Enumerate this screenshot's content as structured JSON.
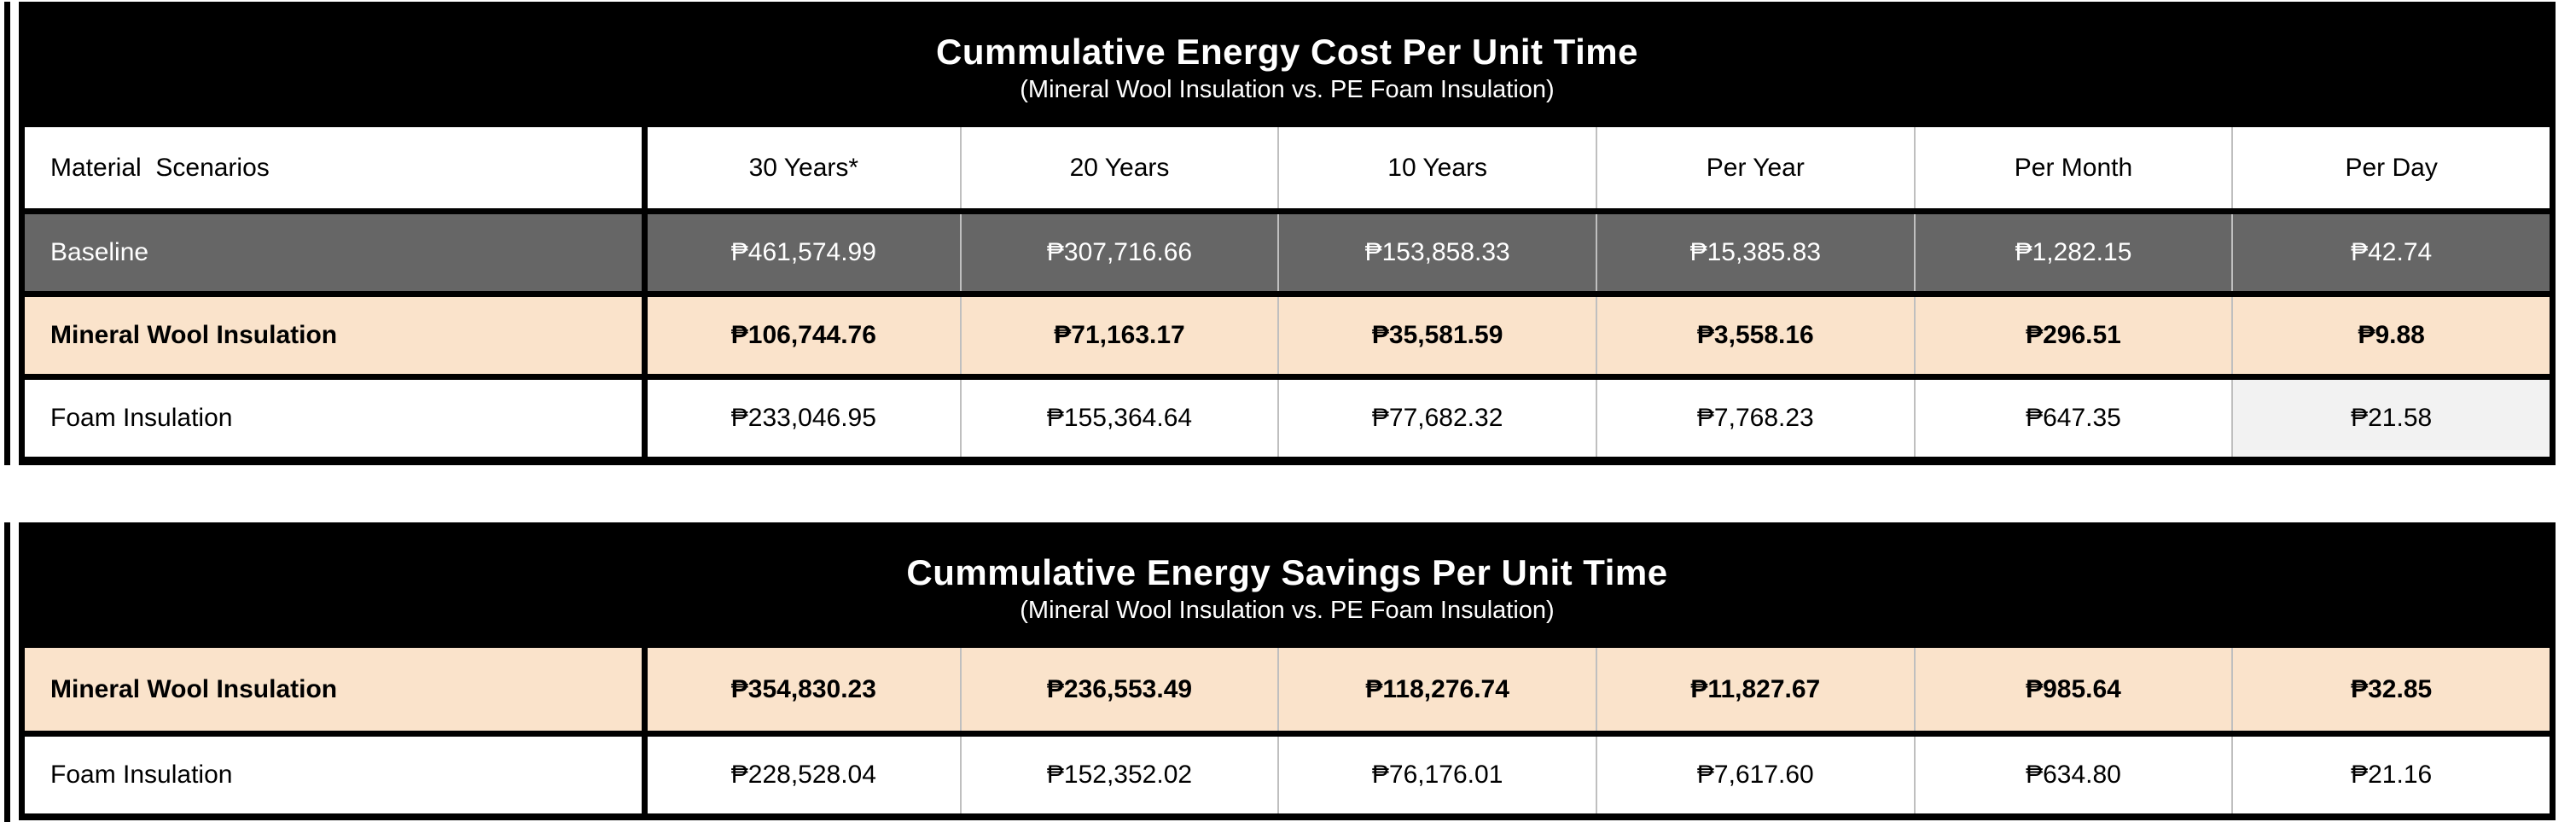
{
  "colors": {
    "band_bg": "#000000",
    "row_gray_bg": "#666666",
    "row_gray_text": "#ffffff",
    "row_peach_bg": "#fae3cb",
    "highlight_cell_bg": "#f2f2f2",
    "divider": "#bfbfbf"
  },
  "table_cost": {
    "title": "Cummulative Energy Cost Per Unit Time",
    "subtitle": "(Mineral Wool Insulation vs. PE Foam Insulation)",
    "header": {
      "material": "Material  Scenarios",
      "cols": [
        "30 Years*",
        "20 Years",
        "10 Years",
        "Per Year",
        "Per Month",
        "Per Day"
      ]
    },
    "rows": [
      {
        "label": "Baseline",
        "values": [
          "₱461,574.99",
          "₱307,716.66",
          "₱153,858.33",
          "₱15,385.83",
          "₱1,282.15",
          "₱42.74"
        ]
      },
      {
        "label": "Mineral Wool Insulation",
        "values": [
          "₱106,744.76",
          "₱71,163.17",
          "₱35,581.59",
          "₱3,558.16",
          "₱296.51",
          "₱9.88"
        ]
      },
      {
        "label": "Foam Insulation",
        "values": [
          "₱233,046.95",
          "₱155,364.64",
          "₱77,682.32",
          "₱7,768.23",
          "₱647.35",
          "₱21.58"
        ]
      }
    ]
  },
  "table_savings": {
    "title": "Cummulative Energy Savings Per Unit Time",
    "subtitle": "(Mineral Wool Insulation vs. PE Foam Insulation)",
    "rows": [
      {
        "label": "Mineral Wool Insulation",
        "values": [
          "₱354,830.23",
          "₱236,553.49",
          "₱118,276.74",
          "₱11,827.67",
          "₱985.64",
          "₱32.85"
        ]
      },
      {
        "label": "Foam Insulation",
        "values": [
          "₱228,528.04",
          "₱152,352.02",
          "₱76,176.01",
          "₱7,617.60",
          "₱634.80",
          "₱21.16"
        ]
      }
    ]
  }
}
